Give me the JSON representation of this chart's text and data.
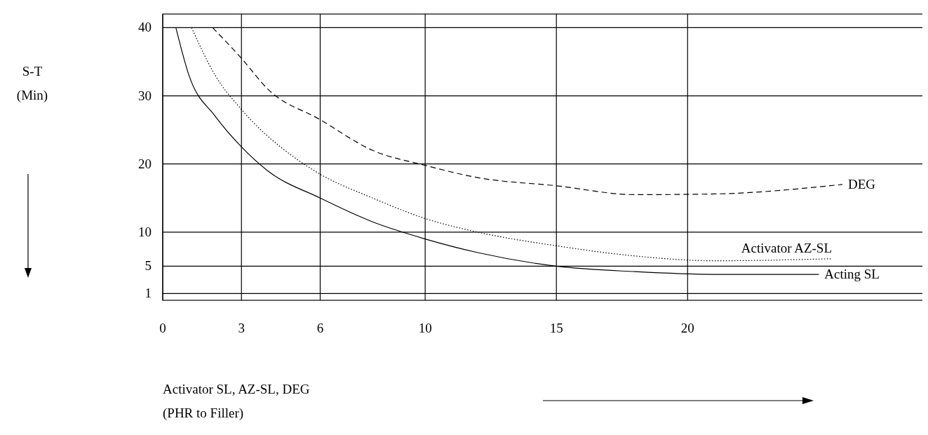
{
  "chart_data": {
    "type": "line",
    "xlabel": "Activator SL,  AZ-SL,  DEG\n(PHR  to  Filler)",
    "annotations": [
      "S-T\n(Min)"
    ],
    "xlim": [
      0,
      29
    ],
    "ylim": [
      0,
      42
    ],
    "xticks": [
      0,
      3,
      6,
      10,
      15,
      20
    ],
    "yticks": [
      1,
      5,
      10,
      20,
      30,
      40
    ],
    "grid": true,
    "series": [
      {
        "name": "DEG",
        "color": "#000000",
        "line_style": "dashed",
        "x": [
          1.9,
          3,
          4,
          6,
          8,
          10,
          12,
          15,
          18,
          21,
          25.9
        ],
        "values": [
          40,
          35.5,
          31,
          26.5,
          22,
          19.8,
          18,
          16.8,
          15.5,
          15.6,
          17
        ]
      },
      {
        "name": "Activator  AZ-SL",
        "color": "#000000",
        "line_style": "dotted",
        "x": [
          1.1,
          2,
          3,
          5,
          6,
          8,
          10,
          12,
          15,
          18,
          21,
          25.5
        ],
        "values": [
          40,
          33,
          28,
          21,
          18.5,
          15,
          12,
          10,
          8,
          6.5,
          5.8,
          6.1
        ]
      },
      {
        "name": "Acting  SL",
        "color": "#000000",
        "line_style": "solid",
        "x": [
          0.5,
          1,
          2,
          3,
          4,
          6,
          8,
          10,
          12,
          15,
          18,
          21,
          25
        ],
        "values": [
          40,
          33,
          27,
          22.5,
          19,
          15,
          11.5,
          9,
          7,
          5,
          4.2,
          3.8,
          3.8
        ]
      }
    ]
  }
}
